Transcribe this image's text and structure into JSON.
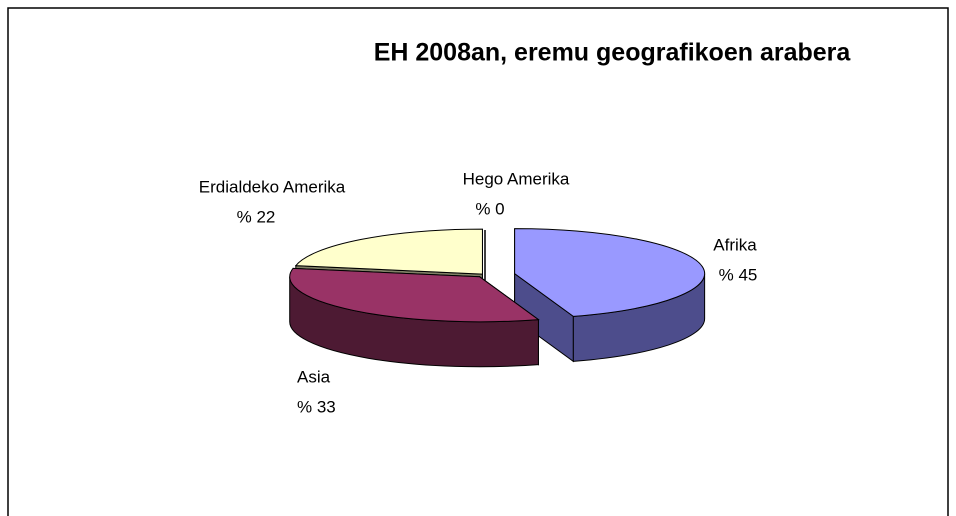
{
  "chart_data": {
    "type": "pie3d",
    "title": "EH 2008an,  eremu geografikoen arabera",
    "categories": [
      "Afrika",
      "Asia",
      "Erdialdeko Amerika",
      "Hego Amerika"
    ],
    "values": [
      45,
      33,
      22,
      0
    ],
    "value_labels": [
      "% 45",
      "% 33",
      "% 22",
      "% 0"
    ],
    "colors": [
      "#9999ff",
      "#993366",
      "#ffffcc",
      "#cccccc"
    ],
    "side_colors": [
      "#4d4d8c",
      "#4d1a33",
      "#808066",
      "#666666"
    ]
  }
}
